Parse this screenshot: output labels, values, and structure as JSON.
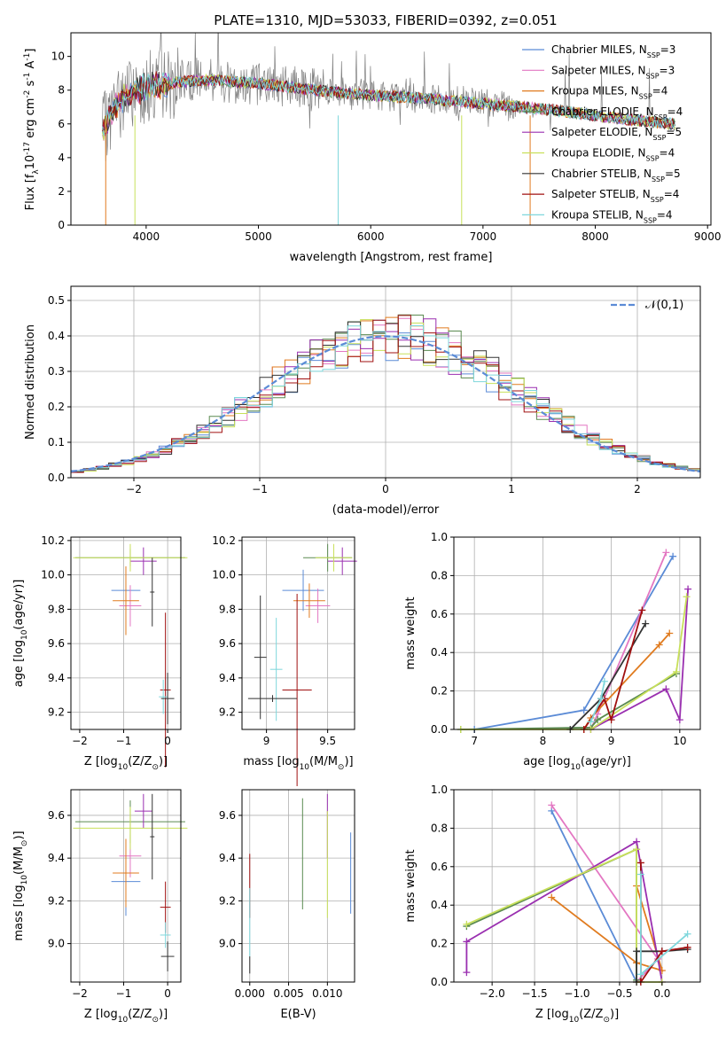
{
  "title": "PLATE=1310, MJD=53033, FIBERID=0392, z=0.051",
  "legend_entries": [
    {
      "label": "Chabrier MILES, N",
      "sub": "SSP",
      "tail": "=3",
      "color": "#5b8bd6"
    },
    {
      "label": "Salpeter MILES, N",
      "sub": "SSP",
      "tail": "=3",
      "color": "#e377c2"
    },
    {
      "label": "Kroupa MILES, N",
      "sub": "SSP",
      "tail": "=4",
      "color": "#e07b1f"
    },
    {
      "label": "Chabrier ELODIE, N",
      "sub": "SSP",
      "tail": "=4",
      "color": "#5a8a50"
    },
    {
      "label": "Salpeter ELODIE, N",
      "sub": "SSP",
      "tail": "=5",
      "color": "#9a2fb0"
    },
    {
      "label": "Kroupa ELODIE, N",
      "sub": "SSP",
      "tail": "=4",
      "color": "#c8e05a"
    },
    {
      "label": "Chabrier STELIB, N",
      "sub": "SSP",
      "tail": "=5",
      "color": "#333333"
    },
    {
      "label": "Salpeter STELIB, N",
      "sub": "SSP",
      "tail": "=4",
      "color": "#a01010"
    },
    {
      "label": "Kroupa STELIB, N",
      "sub": "SSP",
      "tail": "=4",
      "color": "#7fd7dc"
    }
  ],
  "chart_data": [
    {
      "id": "spectrum",
      "type": "line",
      "title": "PLATE=1310, MJD=53033, FIBERID=0392, z=0.051",
      "xlabel": "wavelength [Angstrom, rest frame]",
      "ylabel_parts": [
        "Flux [f",
        "λ",
        "10",
        "-17",
        " erg cm",
        "-2",
        " s",
        "-1",
        " A",
        "-1",
        "]"
      ],
      "xlim": [
        3330,
        9030
      ],
      "ylim": [
        0,
        11.4
      ],
      "xticks": [
        4000,
        5000,
        6000,
        7000,
        8000,
        9000
      ],
      "yticks": [
        0,
        2,
        4,
        6,
        8,
        10
      ],
      "x_start": 3610,
      "x_end": 8710,
      "data_color": "#7f7f7f",
      "model_color": "#7fd7dc",
      "continuum": [
        [
          3610,
          5.4
        ],
        [
          3700,
          6.8
        ],
        [
          3800,
          7.6
        ],
        [
          4000,
          8.2
        ],
        [
          4300,
          8.5
        ],
        [
          4600,
          8.6
        ],
        [
          5000,
          8.4
        ],
        [
          5500,
          8.0
        ],
        [
          6000,
          7.7
        ],
        [
          6500,
          7.5
        ],
        [
          7000,
          7.2
        ],
        [
          7500,
          6.9
        ],
        [
          8000,
          6.5
        ],
        [
          8500,
          6.1
        ],
        [
          8710,
          6.0
        ]
      ]
    },
    {
      "id": "residual_hist",
      "type": "step",
      "xlabel": "(data-model)/error",
      "ylabel": "Normed distribution",
      "xlim": [
        -2.5,
        2.5
      ],
      "ylim": [
        0,
        0.54
      ],
      "xticks": [
        -2,
        -1,
        0,
        1,
        2
      ],
      "yticks": [
        0.0,
        0.1,
        0.2,
        0.3,
        0.4,
        0.5
      ],
      "legend_label": "𝒩(0,1)",
      "gaussian": {
        "mu": 0,
        "sigma": 1,
        "color": "#5b8bd6"
      },
      "bin_width": 0.1
    },
    {
      "id": "age_vs_Z",
      "type": "errorbar",
      "xlabel_parts": [
        "Z [log",
        "10",
        "(Z/Z",
        "⊙",
        ")]"
      ],
      "ylabel_parts": [
        "age  [log",
        "10",
        "(age/yr)]"
      ],
      "xlim": [
        -2.2,
        0.3
      ],
      "ylim": [
        9.1,
        10.22
      ],
      "xticks": [
        -2,
        -1,
        0
      ],
      "yticks": [
        9.2,
        9.4,
        9.6,
        9.8,
        10.0,
        10.2
      ],
      "points": [
        {
          "x": -0.95,
          "y": 9.91,
          "xerr": 0.33,
          "yerr": 0.12,
          "color": "#5b8bd6"
        },
        {
          "x": -0.85,
          "y": 9.82,
          "xerr": 0.25,
          "yerr": 0.12,
          "color": "#e377c2"
        },
        {
          "x": -0.95,
          "y": 9.85,
          "xerr": 0.3,
          "yerr": 0.2,
          "color": "#e07b1f"
        },
        {
          "x": -0.85,
          "y": 10.1,
          "xerr": 1.25,
          "yerr": 0.05,
          "color": "#5a8a50"
        },
        {
          "x": -0.55,
          "y": 10.08,
          "xerr": 0.3,
          "yerr": 0.08,
          "color": "#9a2fb0"
        },
        {
          "x": -0.85,
          "y": 10.1,
          "xerr": 1.3,
          "yerr": 0.08,
          "color": "#c8e05a"
        },
        {
          "x": -0.35,
          "y": 9.9,
          "xerr": 0.05,
          "yerr": 0.2,
          "color": "#333333"
        },
        {
          "x": -0.05,
          "y": 9.33,
          "xerr": 0.12,
          "yerr": 0.45,
          "color": "#a01010"
        },
        {
          "x": -0.1,
          "y": 9.29,
          "xerr": 0.1,
          "yerr": 0.1,
          "color": "#7fd7dc"
        },
        {
          "x": 0.0,
          "y": 9.28,
          "xerr": 0.15,
          "yerr": 0.15,
          "color": "#333333"
        }
      ]
    },
    {
      "id": "age_vs_mass",
      "type": "errorbar",
      "xlabel_parts": [
        "mass [log",
        "10",
        "(M/M",
        "⊙",
        ")]"
      ],
      "xlim": [
        8.8,
        9.72
      ],
      "ylim": [
        9.1,
        10.22
      ],
      "xticks": [
        9.0,
        9.5
      ],
      "yticks": [
        9.2,
        9.4,
        9.6,
        9.8,
        10.0,
        10.2
      ],
      "points": [
        {
          "x": 9.3,
          "y": 9.91,
          "xerr": 0.17,
          "yerr": 0.12,
          "color": "#5b8bd6"
        },
        {
          "x": 9.42,
          "y": 9.82,
          "xerr": 0.1,
          "yerr": 0.1,
          "color": "#e377c2"
        },
        {
          "x": 9.35,
          "y": 9.85,
          "xerr": 0.13,
          "yerr": 0.1,
          "color": "#e07b1f"
        },
        {
          "x": 9.5,
          "y": 10.1,
          "xerr": 0.2,
          "yerr": 0.08,
          "color": "#5a8a50"
        },
        {
          "x": 9.62,
          "y": 10.08,
          "xerr": 0.12,
          "yerr": 0.08,
          "color": "#9a2fb0"
        },
        {
          "x": 9.55,
          "y": 10.1,
          "xerr": 0.15,
          "yerr": 0.08,
          "color": "#c8e05a"
        },
        {
          "x": 8.95,
          "y": 9.52,
          "xerr": 0.05,
          "yerr": 0.36,
          "color": "#333333"
        },
        {
          "x": 9.25,
          "y": 9.33,
          "xerr": 0.12,
          "yerr": 0.56,
          "color": "#a01010"
        },
        {
          "x": 9.08,
          "y": 9.45,
          "xerr": 0.05,
          "yerr": 0.3,
          "color": "#7fd7dc"
        },
        {
          "x": 9.05,
          "y": 9.28,
          "xerr": 0.2,
          "yerr": 0.02,
          "color": "#333333"
        }
      ]
    },
    {
      "id": "weight_vs_age",
      "type": "line",
      "xlabel_parts": [
        "age  [log",
        "10",
        "(age/yr)]"
      ],
      "ylabel": "mass weight",
      "xlim": [
        6.7,
        10.3
      ],
      "ylim": [
        0,
        1.0
      ],
      "xticks": [
        7,
        8,
        9,
        10
      ],
      "yticks": [
        0.0,
        0.2,
        0.4,
        0.6,
        0.8,
        1.0
      ],
      "series": [
        {
          "color": "#5b8bd6",
          "x": [
            7.0,
            8.6,
            9.9
          ],
          "y": [
            0.0,
            0.1,
            0.9
          ]
        },
        {
          "color": "#e377c2",
          "x": [
            8.7,
            8.8,
            9.8
          ],
          "y": [
            0.0,
            0.08,
            0.92
          ]
        },
        {
          "color": "#e07b1f",
          "x": [
            8.6,
            8.7,
            9.7,
            9.85
          ],
          "y": [
            0.0,
            0.06,
            0.44,
            0.5
          ]
        },
        {
          "color": "#5a8a50",
          "x": [
            6.8,
            8.7,
            8.8,
            9.95
          ],
          "y": [
            0.0,
            0.01,
            0.05,
            0.29
          ]
        },
        {
          "color": "#9a2fb0",
          "x": [
            8.7,
            9.8,
            10.0,
            10.12
          ],
          "y": [
            0.0,
            0.21,
            0.05,
            0.73
          ]
        },
        {
          "color": "#c8e05a",
          "x": [
            6.8,
            8.7,
            9.95,
            10.1
          ],
          "y": [
            0.0,
            0.0,
            0.3,
            0.69
          ]
        },
        {
          "color": "#333333",
          "x": [
            8.4,
            8.85,
            9.5
          ],
          "y": [
            0.0,
            0.16,
            0.55
          ]
        },
        {
          "color": "#a01010",
          "x": [
            8.6,
            8.9,
            9.0,
            9.45
          ],
          "y": [
            0.0,
            0.16,
            0.05,
            0.62
          ]
        },
        {
          "color": "#7fd7dc",
          "x": [
            8.7,
            8.85,
            8.9
          ],
          "y": [
            0.04,
            0.16,
            0.25
          ]
        }
      ]
    },
    {
      "id": "mass_vs_Z",
      "type": "errorbar",
      "xlabel_parts": [
        "Z [log",
        "10",
        "(Z/Z",
        "⊙",
        ")]"
      ],
      "ylabel_parts": [
        "mass [log",
        "10",
        "(M/M",
        "⊙",
        ")]"
      ],
      "xlim": [
        -2.2,
        0.3
      ],
      "ylim": [
        8.82,
        9.72
      ],
      "xticks": [
        -2,
        -1,
        0
      ],
      "yticks": [
        9.0,
        9.2,
        9.4,
        9.6
      ],
      "points": [
        {
          "x": -0.95,
          "y": 9.29,
          "xerr": 0.33,
          "yerr": 0.16,
          "color": "#5b8bd6"
        },
        {
          "x": -0.85,
          "y": 9.41,
          "xerr": 0.25,
          "yerr": 0.1,
          "color": "#e377c2"
        },
        {
          "x": -0.95,
          "y": 9.33,
          "xerr": 0.3,
          "yerr": 0.16,
          "color": "#e07b1f"
        },
        {
          "x": -0.85,
          "y": 9.57,
          "xerr": 1.25,
          "yerr": 0.1,
          "color": "#5a8a50"
        },
        {
          "x": -0.55,
          "y": 9.62,
          "xerr": 0.2,
          "yerr": 0.08,
          "color": "#9a2fb0"
        },
        {
          "x": -0.85,
          "y": 9.54,
          "xerr": 1.3,
          "yerr": 0.1,
          "color": "#c8e05a"
        },
        {
          "x": -0.35,
          "y": 9.5,
          "xerr": 0.05,
          "yerr": 0.2,
          "color": "#333333"
        },
        {
          "x": -0.05,
          "y": 9.17,
          "xerr": 0.12,
          "yerr": 0.12,
          "color": "#a01010"
        },
        {
          "x": -0.05,
          "y": 9.04,
          "xerr": 0.12,
          "yerr": 0.06,
          "color": "#7fd7dc"
        },
        {
          "x": 0.0,
          "y": 8.94,
          "xerr": 0.15,
          "yerr": 0.07,
          "color": "#333333"
        }
      ]
    },
    {
      "id": "mass_vs_ebv",
      "type": "errorbar",
      "xlabel": "E(B-V)",
      "xlim": [
        -0.001,
        0.0135
      ],
      "ylim": [
        8.82,
        9.72
      ],
      "xticks": [
        0.0,
        0.005,
        0.01
      ],
      "xtick_labels": [
        "0.000",
        "0.005",
        "0.010"
      ],
      "yticks": [
        9.0,
        9.2,
        9.4,
        9.6
      ],
      "points": [
        {
          "x": 0.013,
          "y": 9.33,
          "xerr": 0,
          "yerr": 0.19,
          "color": "#5b8bd6"
        },
        {
          "x": 0.0068,
          "y": 9.42,
          "xerr": 0,
          "yerr": 0.26,
          "color": "#5a8a50"
        },
        {
          "x": 0.01,
          "y": 9.55,
          "xerr": 0,
          "yerr": 0.15,
          "color": "#9a2fb0"
        },
        {
          "x": 0.01,
          "y": 9.37,
          "xerr": 0,
          "yerr": 0.25,
          "color": "#c8e05a"
        },
        {
          "x": 0.0,
          "y": 9.27,
          "xerr": 0,
          "yerr": 0.15,
          "color": "#a01010"
        },
        {
          "x": 0.0,
          "y": 9.1,
          "xerr": 0,
          "yerr": 0.16,
          "color": "#7fd7dc"
        },
        {
          "x": 0.0,
          "y": 8.9,
          "xerr": 0,
          "yerr": 0.04,
          "color": "#333333"
        }
      ]
    },
    {
      "id": "weight_vs_Z",
      "type": "line",
      "xlabel_parts": [
        "Z [log",
        "10",
        "(Z/Z",
        "⊙",
        ")]"
      ],
      "ylabel": "mass weight",
      "xlim": [
        -2.45,
        0.45
      ],
      "ylim": [
        0,
        1.0
      ],
      "xticks": [
        -2.0,
        -1.5,
        -1.0,
        -0.5,
        0.0
      ],
      "xtick_labels": [
        "−2.0",
        "−1.5",
        "−1.0",
        "−0.5",
        "0.0"
      ],
      "yticks": [
        0.0,
        0.2,
        0.4,
        0.6,
        0.8,
        1.0
      ],
      "series": [
        {
          "color": "#5b8bd6",
          "x": [
            -1.3,
            -0.3,
            -0.3
          ],
          "y": [
            0.89,
            0.0,
            0.1
          ]
        },
        {
          "color": "#e377c2",
          "x": [
            -1.3,
            -0.05,
            -0.3
          ],
          "y": [
            0.92,
            0.12,
            0.0
          ]
        },
        {
          "color": "#e07b1f",
          "x": [
            -1.3,
            -0.3,
            0.0,
            -0.3
          ],
          "y": [
            0.44,
            0.1,
            0.06,
            0.5
          ]
        },
        {
          "color": "#5a8a50",
          "x": [
            -2.3,
            -0.3,
            -0.3
          ],
          "y": [
            0.29,
            0.69,
            0.01
          ]
        },
        {
          "color": "#9a2fb0",
          "x": [
            -2.3,
            -2.3,
            -0.3,
            0.0
          ],
          "y": [
            0.05,
            0.21,
            0.73,
            0.0
          ]
        },
        {
          "color": "#c8e05a",
          "x": [
            -2.3,
            -0.3,
            -0.3,
            0.0
          ],
          "y": [
            0.3,
            0.69,
            0.0,
            0.0
          ]
        },
        {
          "color": "#333333",
          "x": [
            -0.3,
            -0.3,
            0.0,
            0.3
          ],
          "y": [
            0.0,
            0.16,
            0.16,
            0.17
          ]
        },
        {
          "color": "#a01010",
          "x": [
            -0.25,
            -0.25,
            0.0,
            0.3
          ],
          "y": [
            0.62,
            0.0,
            0.16,
            0.18
          ]
        },
        {
          "color": "#7fd7dc",
          "x": [
            -0.25,
            -0.25,
            0.3
          ],
          "y": [
            0.56,
            0.04,
            0.25
          ]
        }
      ]
    }
  ]
}
